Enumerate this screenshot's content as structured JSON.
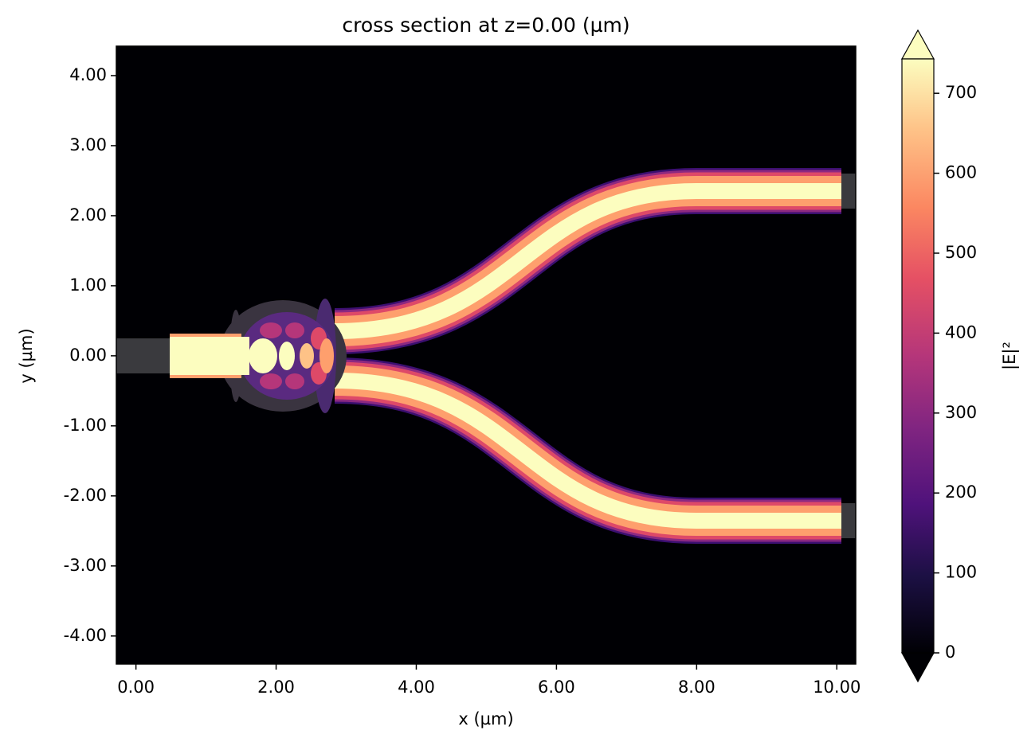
{
  "chart_data": {
    "type": "heatmap",
    "title": "cross section at z=0.00 (µm)",
    "xlabel": "x (µm)",
    "ylabel": "y (µm)",
    "xlim": [
      -0.28,
      10.27
    ],
    "ylim": [
      -4.4,
      4.42
    ],
    "xticks": [
      {
        "value": 0,
        "label": "0.00"
      },
      {
        "value": 2,
        "label": "2.00"
      },
      {
        "value": 4,
        "label": "4.00"
      },
      {
        "value": 6,
        "label": "6.00"
      },
      {
        "value": 8,
        "label": "8.00"
      },
      {
        "value": 10,
        "label": "10.00"
      }
    ],
    "yticks": [
      {
        "value": -4,
        "label": "-4.00"
      },
      {
        "value": -3,
        "label": "-3.00"
      },
      {
        "value": -2,
        "label": "-2.00"
      },
      {
        "value": -1,
        "label": "-1.00"
      },
      {
        "value": 0,
        "label": "0.00"
      },
      {
        "value": 1,
        "label": "1.00"
      },
      {
        "value": 2,
        "label": "2.00"
      },
      {
        "value": 3,
        "label": "3.00"
      },
      {
        "value": 4,
        "label": "4.00"
      }
    ],
    "colorbar": {
      "label": "|E|²",
      "lim": [
        0,
        743
      ],
      "ticks": [
        0,
        100,
        200,
        300,
        400,
        500,
        600,
        700
      ]
    }
  }
}
